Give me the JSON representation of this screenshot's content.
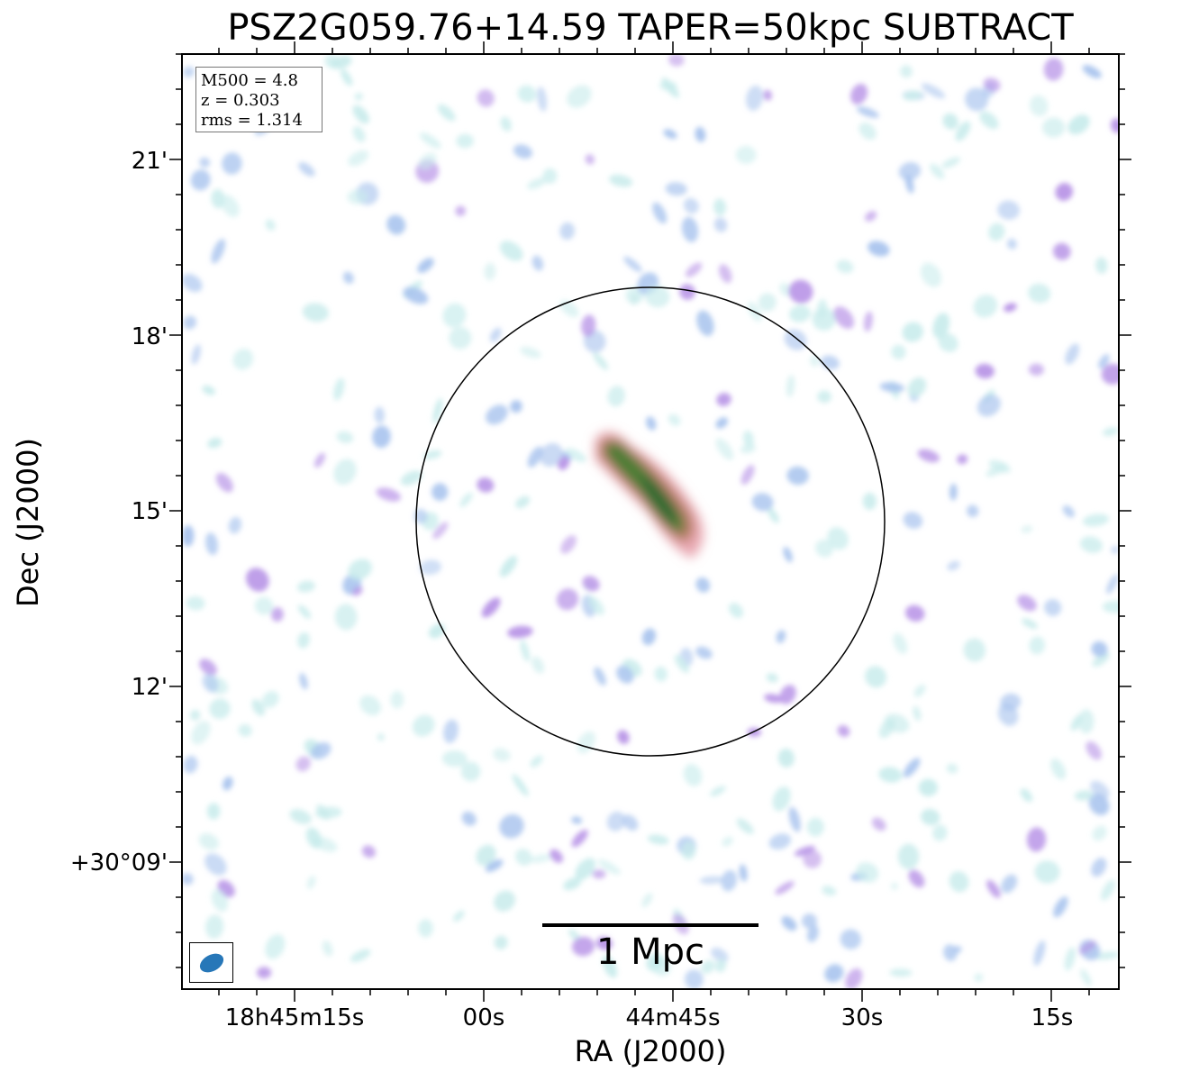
{
  "title": "PSZ2G059.76+14.59 TAPER=50kpc SUBTRACT",
  "axes": {
    "xlabel": "RA (J2000)",
    "ylabel": "Dec (J2000)",
    "x_ticks": [
      "18h45m15s",
      "00s",
      "44m45s",
      "30s",
      "15s"
    ],
    "y_ticks": [
      "21'",
      "18'",
      "15'",
      "12'",
      "+30°09'"
    ]
  },
  "info": {
    "mass_line": "M500 = 4.8",
    "z_line": "z = 0.303",
    "rms_line": "rms = 1.314"
  },
  "scalebar": {
    "label": "1 Mpc"
  },
  "colors": {
    "source_core": "#2f6f2e",
    "source_edge": "#e0808c",
    "noise_light": "#c9ecec",
    "noise_mid": "#a9c4ee",
    "noise_strong": "#b691e6",
    "beam": "#2777b8"
  }
}
